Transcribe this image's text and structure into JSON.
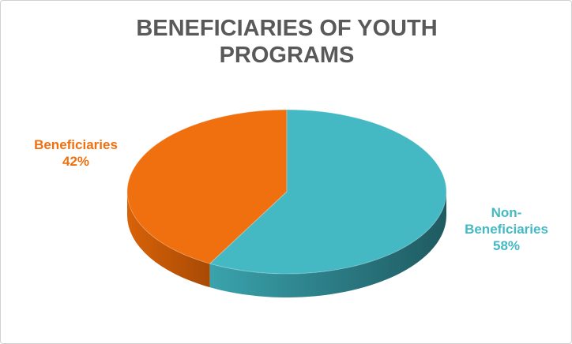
{
  "chart_data": {
    "type": "pie",
    "title": "BENEFICIARIES OF YOUTH PROGRAMS",
    "categories": [
      "Beneficiaries",
      "Non-Beneficiaries"
    ],
    "values": [
      42,
      58
    ],
    "value_labels": [
      "42%",
      "58%"
    ],
    "colors": [
      "#f07010",
      "#44b9c4"
    ]
  }
}
